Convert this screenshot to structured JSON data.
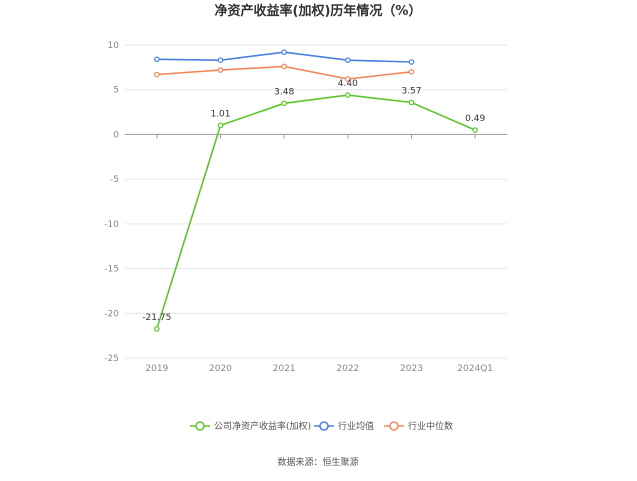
{
  "chart_data": {
    "type": "line",
    "title": "净资产收益率(加权)历年情况（%）",
    "categories": [
      "2019",
      "2020",
      "2021",
      "2022",
      "2023",
      "2024Q1"
    ],
    "ylim": [
      -25,
      10
    ],
    "yticks": [
      10,
      5,
      0,
      -5,
      -10,
      -15,
      -20,
      -25
    ],
    "grid": true,
    "legend_position": "bottom",
    "series": [
      {
        "name": "公司净资产收益率(加权)",
        "color": "#5cc52a",
        "values": [
          -21.75,
          1.01,
          3.48,
          4.4,
          3.57,
          0.49
        ],
        "labels": [
          "-21.75",
          "1.01",
          "3.48",
          "4.40",
          "3.57",
          "0.49"
        ]
      },
      {
        "name": "行业均值",
        "color": "#4a7fe0",
        "values": [
          8.4,
          8.3,
          9.2,
          8.3,
          8.1,
          null
        ]
      },
      {
        "name": "行业中位数",
        "color": "#f0875a",
        "values": [
          6.7,
          7.2,
          7.6,
          6.2,
          7.0,
          null
        ]
      }
    ]
  },
  "source": "数据来源：恒生聚源"
}
